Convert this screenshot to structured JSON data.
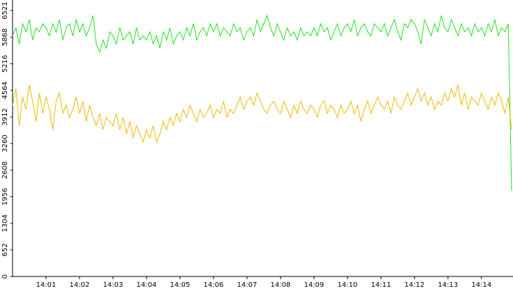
{
  "chart_data": {
    "type": "line",
    "categories": [
      null,
      null,
      null,
      null,
      null,
      null,
      null,
      null,
      null,
      null,
      "14:01",
      null,
      null,
      null,
      null,
      null,
      null,
      null,
      null,
      null,
      "14:02",
      null,
      null,
      null,
      null,
      null,
      null,
      null,
      null,
      null,
      "14:03",
      null,
      null,
      null,
      null,
      null,
      null,
      null,
      null,
      null,
      "14:04",
      null,
      null,
      null,
      null,
      null,
      null,
      null,
      null,
      null,
      "14:05",
      null,
      null,
      null,
      null,
      null,
      null,
      null,
      null,
      null,
      "14:06",
      null,
      null,
      null,
      null,
      null,
      null,
      null,
      null,
      null,
      "14:07",
      null,
      null,
      null,
      null,
      null,
      null,
      null,
      null,
      null,
      "14:08",
      null,
      null,
      null,
      null,
      null,
      null,
      null,
      null,
      null,
      "14:09",
      null,
      null,
      null,
      null,
      null,
      null,
      null,
      null,
      null,
      "14:10",
      null,
      null,
      null,
      null,
      null,
      null,
      null,
      null,
      null,
      "14:11",
      null,
      null,
      null,
      null,
      null,
      null,
      null,
      null,
      null,
      "14:12",
      null,
      null,
      null,
      null,
      null,
      null,
      null,
      null,
      null,
      "14:13",
      null,
      null,
      null,
      null,
      null,
      null,
      null,
      null,
      null,
      "14:14",
      null,
      null,
      null,
      null,
      null,
      null,
      null,
      null,
      null
    ],
    "series": [
      {
        "color": "#22e022",
        "values": [
          5900,
          6100,
          5700,
          6200,
          6000,
          6300,
          5800,
          6100,
          6000,
          6200,
          6100,
          5900,
          6200,
          6000,
          6300,
          5800,
          6100,
          6200,
          5900,
          6300,
          6000,
          6200,
          5900,
          6100,
          6400,
          5700,
          5500,
          5800,
          5600,
          6000,
          5900,
          5700,
          6100,
          5800,
          5900,
          6000,
          5700,
          6100,
          5800,
          5900,
          5800,
          6000,
          5700,
          5900,
          5600,
          6000,
          5800,
          6100,
          5700,
          5900,
          6000,
          5800,
          6100,
          5900,
          6200,
          5800,
          6000,
          6100,
          5900,
          6200,
          6000,
          6200,
          5900,
          6100,
          6000,
          5900,
          6200,
          6000,
          6100,
          5800,
          6000,
          6100,
          5900,
          6300,
          6000,
          6200,
          6400,
          6100,
          5900,
          6200,
          6000,
          5800,
          6100,
          5900,
          6000,
          5800,
          6100,
          5900,
          6000,
          5900,
          6100,
          5900,
          6200,
          6000,
          6100,
          5800,
          6000,
          6200,
          5900,
          6100,
          6200,
          6000,
          6300,
          5900,
          6100,
          6200,
          6000,
          5900,
          6200,
          6100,
          6000,
          6200,
          5900,
          6100,
          6300,
          6000,
          5800,
          6200,
          6100,
          6300,
          6200,
          6000,
          5700,
          6300,
          6100,
          5900,
          6200,
          6000,
          6400,
          6100,
          6000,
          6300,
          6100,
          5900,
          6200,
          6000,
          6100,
          5900,
          6200,
          6000,
          6100,
          5900,
          6200,
          6000,
          6300,
          5900,
          6100,
          6000,
          6200,
          2100
        ]
      },
      {
        "color": "#f0b800",
        "values": [
          4200,
          4600,
          3700,
          4400,
          4100,
          4700,
          4300,
          3800,
          4500,
          4000,
          4400,
          4100,
          3600,
          4300,
          4500,
          4000,
          4200,
          3900,
          4100,
          4400,
          4000,
          4300,
          3800,
          4200,
          3900,
          3700,
          4000,
          3600,
          3900,
          3800,
          3700,
          4000,
          3600,
          3900,
          3500,
          3800,
          3400,
          3700,
          3500,
          3300,
          3600,
          3400,
          3700,
          3300,
          3500,
          3800,
          3600,
          3900,
          3700,
          4000,
          3800,
          4100,
          3900,
          4200,
          4000,
          3800,
          4100,
          3900,
          4000,
          4200,
          3900,
          4100,
          4000,
          4300,
          3900,
          4100,
          4000,
          4200,
          4400,
          4100,
          4300,
          4400,
          4200,
          4500,
          4300,
          4100,
          4000,
          4200,
          4300,
          4100,
          4000,
          4300,
          4100,
          3900,
          4200,
          4000,
          4300,
          4100,
          4000,
          4200,
          4100,
          3900,
          4200,
          4300,
          4000,
          4200,
          4100,
          3900,
          4200,
          4000,
          4100,
          4300,
          4000,
          4200,
          3800,
          4100,
          4300,
          4000,
          4200,
          4400,
          4200,
          4100,
          4300,
          4000,
          4400,
          4200,
          4100,
          4300,
          4500,
          4200,
          4400,
          4600,
          4300,
          4500,
          4200,
          4400,
          4100,
          4300,
          4200,
          4500,
          4300,
          4600,
          4400,
          4700,
          4200,
          4500,
          4100,
          4400,
          4300,
          4200,
          4500,
          4300,
          4100,
          4400,
          4200,
          4500,
          4300,
          4000,
          4400,
          3600
        ]
      }
    ],
    "ylim": [
      0,
      6780
    ],
    "yticks": [
      0,
      652,
      1304,
      1956,
      2608,
      3260,
      3912,
      4564,
      5216,
      5868,
      6521
    ]
  }
}
